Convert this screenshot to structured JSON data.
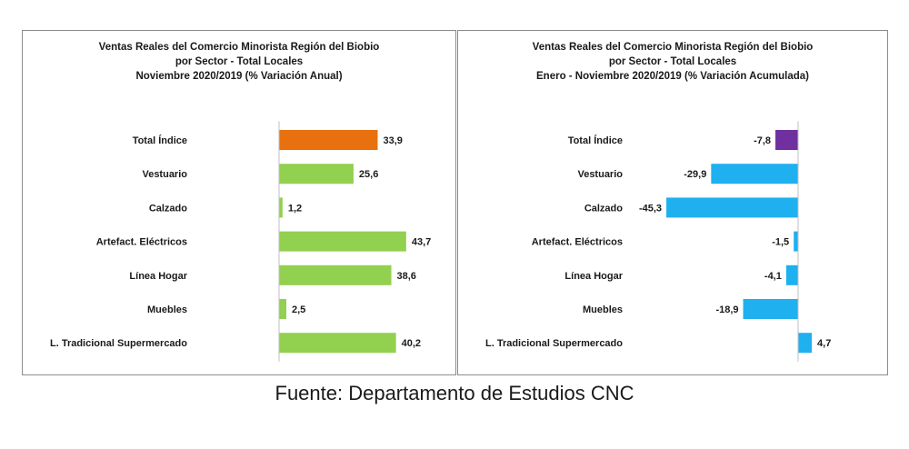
{
  "source": "Fuente: Departamento de Estudios CNC",
  "chart_data": [
    {
      "type": "bar",
      "orientation": "horizontal",
      "title": [
        "Ventas Reales del Comercio Minorista  Región del Biobio",
        "por Sector - Total Locales",
        "Noviembre 2020/2019  (% Variación Anual)"
      ],
      "categories": [
        "Total Índice",
        "Vestuario",
        "Calzado",
        "Artefact. Eléctricos",
        "Línea Hogar",
        "Muebles",
        "L. Tradicional Supermercado"
      ],
      "values": [
        33.9,
        25.6,
        1.2,
        43.7,
        38.6,
        2.5,
        40.2
      ],
      "value_labels": [
        "33,9",
        "25,6",
        "1,2",
        "43,7",
        "38,6",
        "2,5",
        "40,2"
      ],
      "colors": [
        "#e8700f",
        "#92d050",
        "#92d050",
        "#92d050",
        "#92d050",
        "#92d050",
        "#92d050"
      ],
      "xlim": [
        0,
        50
      ],
      "grid": false,
      "legend": "none"
    },
    {
      "type": "bar",
      "orientation": "horizontal",
      "title": [
        "Ventas Reales del Comercio Minorista Región del Biobio",
        "por Sector - Total Locales",
        "Enero - Noviembre  2020/2019 (% Variación Acumulada)"
      ],
      "categories": [
        "Total Índice",
        "Vestuario",
        "Calzado",
        "Artefact. Eléctricos",
        "Línea Hogar",
        "Muebles",
        "L. Tradicional Supermercado"
      ],
      "values": [
        -7.8,
        -29.9,
        -45.3,
        -1.5,
        -4.1,
        -18.9,
        4.7
      ],
      "value_labels": [
        "-7,8",
        "-29,9",
        "-45,3",
        "-1,5",
        "-4,1",
        "-18,9",
        "4,7"
      ],
      "colors": [
        "#7030a0",
        "#1fb0f0",
        "#1fb0f0",
        "#1fb0f0",
        "#1fb0f0",
        "#1fb0f0",
        "#1fb0f0"
      ],
      "xlim": [
        -50,
        10
      ],
      "grid": false,
      "legend": "none"
    }
  ]
}
